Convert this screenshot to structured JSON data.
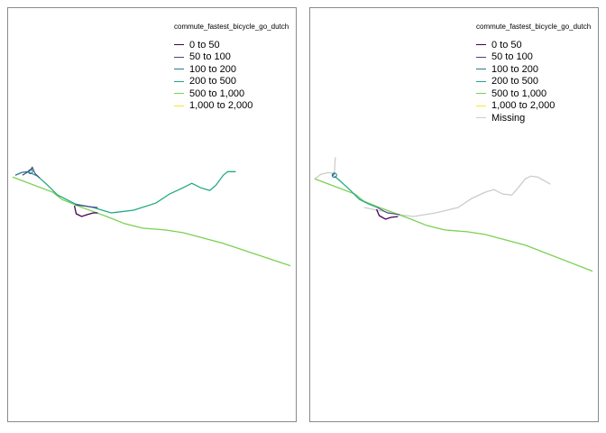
{
  "panels": [
    {
      "id": "left",
      "legend": {
        "title": "commute_fastest_bicycle_go_dutch",
        "items": [
          {
            "label": "0 to 50",
            "color": "#440154"
          },
          {
            "label": "50 to 100",
            "color": "#414487"
          },
          {
            "label": "100 to 200",
            "color": "#2a788e"
          },
          {
            "label": "200 to 500",
            "color": "#22a884"
          },
          {
            "label": "500 to 1,000",
            "color": "#7ad151"
          },
          {
            "label": "1,000 to 2,000",
            "color": "#fde725"
          }
        ]
      }
    },
    {
      "id": "right",
      "legend": {
        "title": "commute_fastest_bicycle_go_dutch",
        "items": [
          {
            "label": "0 to 50",
            "color": "#440154"
          },
          {
            "label": "50 to 100",
            "color": "#414487"
          },
          {
            "label": "100 to 200",
            "color": "#2a788e"
          },
          {
            "label": "200 to 500",
            "color": "#22a884"
          },
          {
            "label": "500 to 1,000",
            "color": "#7ad151"
          },
          {
            "label": "1,000 to 2,000",
            "color": "#fde725"
          },
          {
            "label": "Missing",
            "color": "#cccccc"
          }
        ]
      }
    }
  ]
}
